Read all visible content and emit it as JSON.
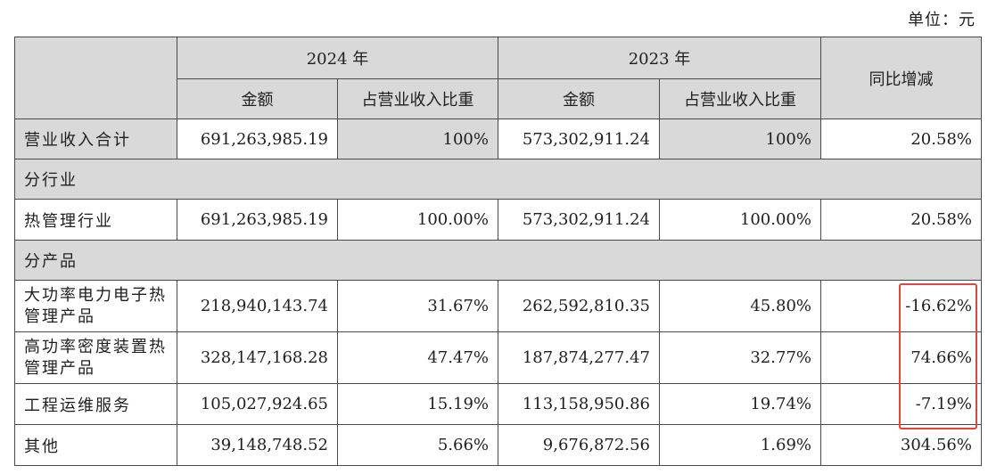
{
  "unit_label": "单位：元",
  "header": {
    "year_2024": "2024 年",
    "year_2023": "2023 年",
    "amount_label": "金额",
    "share_label": "占营业收入比重",
    "yoy_label": "同比增减"
  },
  "total_row": {
    "label": "营业收入合计",
    "amount_2024": "691,263,985.19",
    "share_2024": "100%",
    "amount_2023": "573,302,911.24",
    "share_2023": "100%",
    "yoy": "20.58%"
  },
  "section_industry": "分行业",
  "industry_rows": [
    {
      "label": "热管理行业",
      "amount_2024": "691,263,985.19",
      "share_2024": "100.00%",
      "amount_2023": "573,302,911.24",
      "share_2023": "100.00%",
      "yoy": "20.58%"
    }
  ],
  "section_product": "分产品",
  "product_rows": [
    {
      "label": "大功率电力电子热管理产品",
      "amount_2024": "218,940,143.74",
      "share_2024": "31.67%",
      "amount_2023": "262,592,810.35",
      "share_2023": "45.80%",
      "yoy": "-16.62%"
    },
    {
      "label": "高功率密度装置热管理产品",
      "amount_2024": "328,147,168.28",
      "share_2024": "47.47%",
      "amount_2023": "187,874,277.47",
      "share_2023": "32.77%",
      "yoy": "74.66%"
    },
    {
      "label": "工程运维服务",
      "amount_2024": "105,027,924.65",
      "share_2024": "15.19%",
      "amount_2023": "113,158,950.86",
      "share_2023": "19.74%",
      "yoy": "-7.19%"
    },
    {
      "label": "其他",
      "amount_2024": "39,148,748.52",
      "share_2024": "5.66%",
      "amount_2023": "9,676,872.56",
      "share_2023": "1.69%",
      "yoy": "304.56%"
    }
  ],
  "highlight_color": "#e0463c"
}
